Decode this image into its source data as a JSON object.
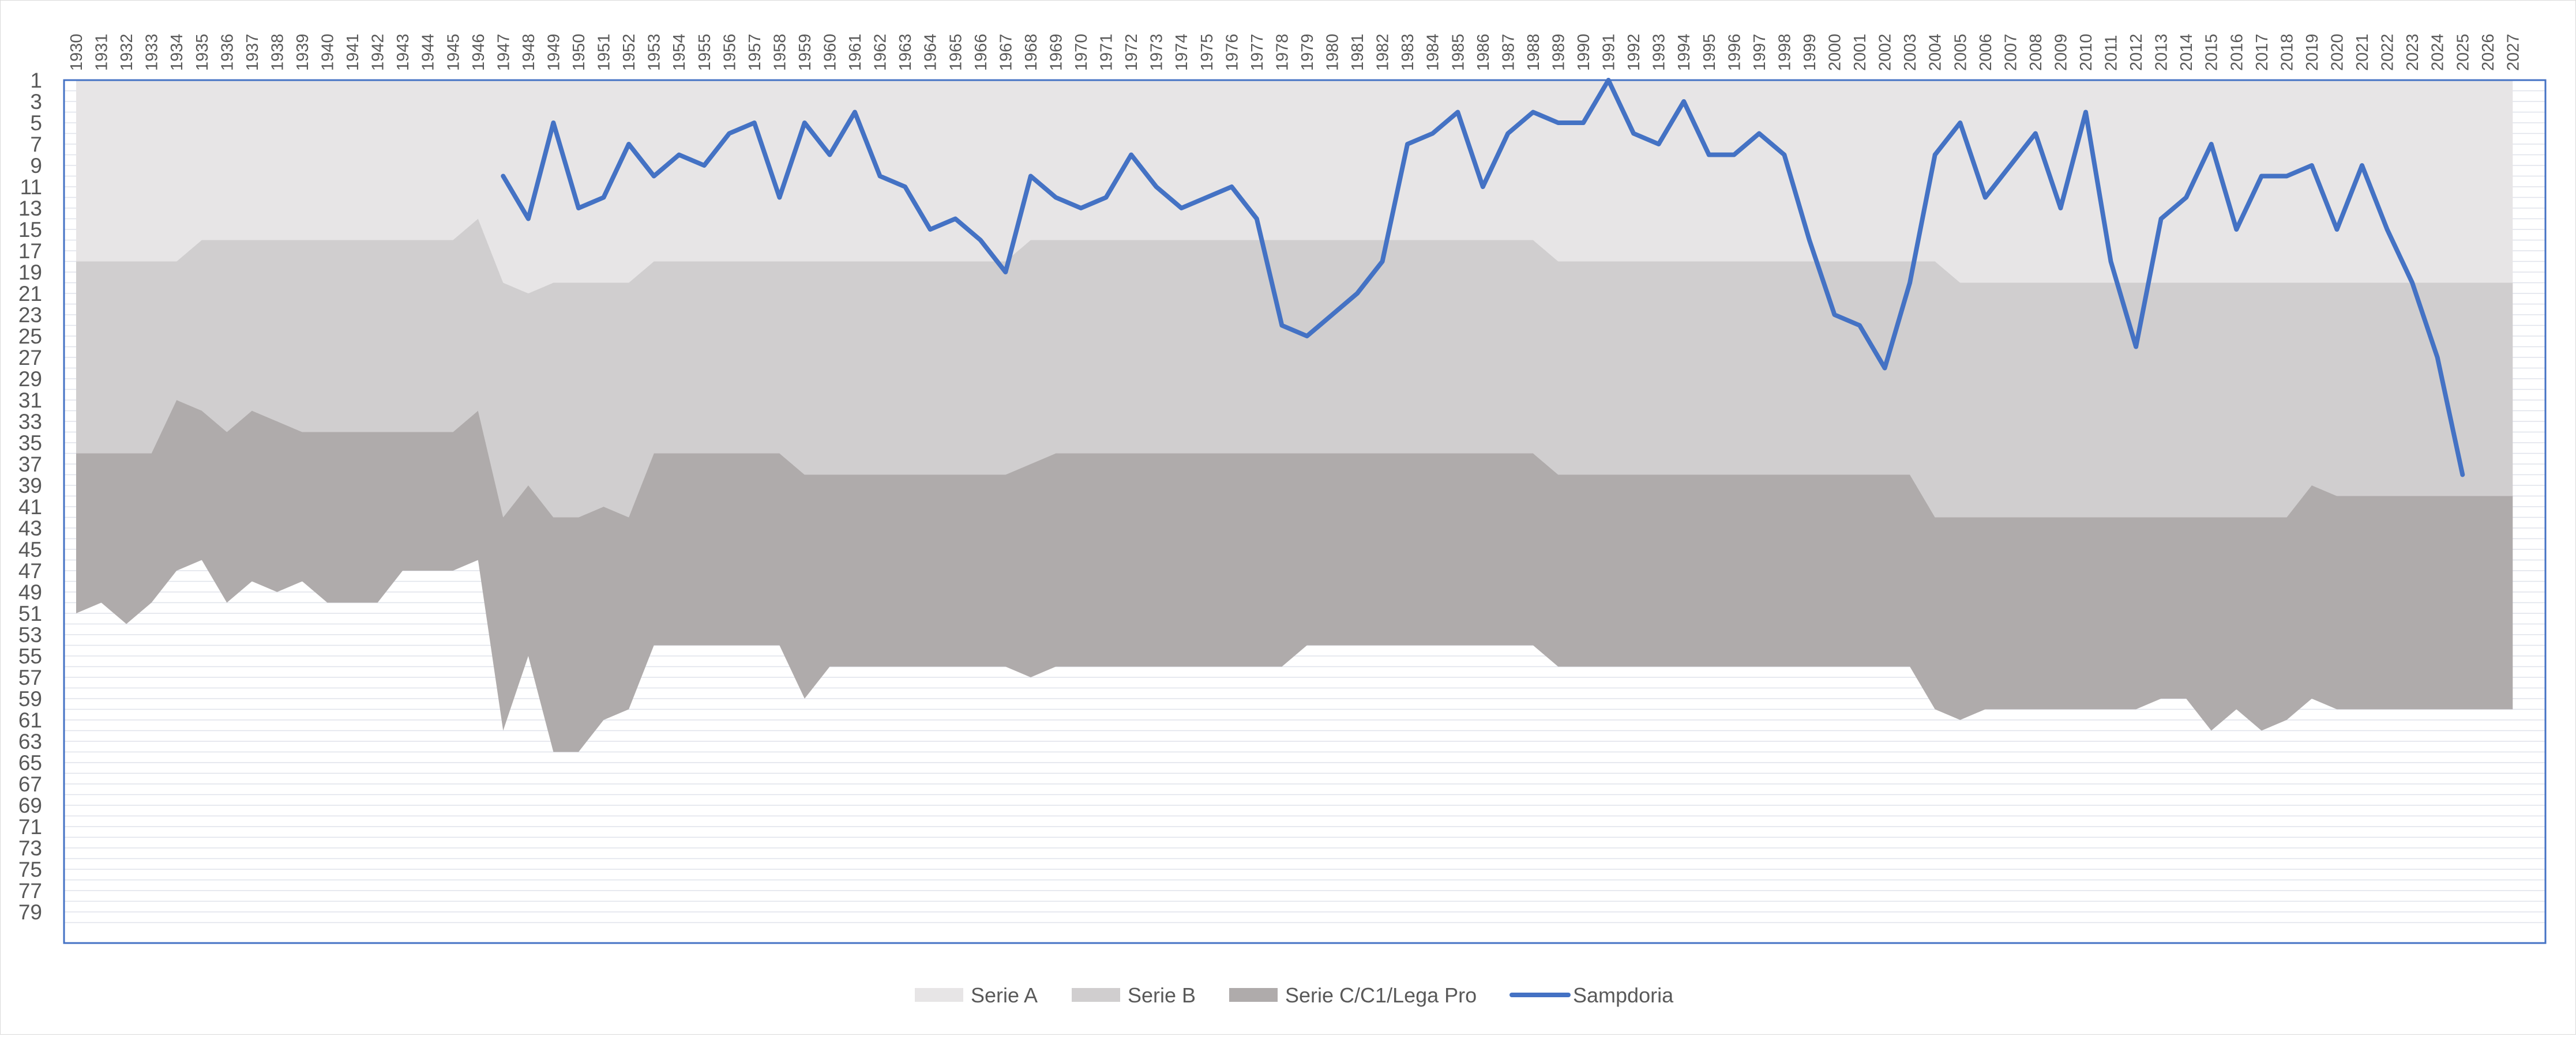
{
  "chart_data": {
    "type": "area",
    "title": "",
    "xlabel": "",
    "ylabel": "",
    "x_range": [
      1930,
      2027
    ],
    "y_range": [
      1,
      80
    ],
    "y_reversed": true,
    "grid": "horizontal",
    "legend_placement": "bottom",
    "x_ticks": [
      "1930",
      "1931",
      "1932",
      "1933",
      "1934",
      "1935",
      "1936",
      "1937",
      "1938",
      "1939",
      "1940",
      "1941",
      "1942",
      "1943",
      "1944",
      "1945",
      "1946",
      "1947",
      "1948",
      "1949",
      "1950",
      "1951",
      "1952",
      "1953",
      "1954",
      "1955",
      "1956",
      "1957",
      "1958",
      "1959",
      "1960",
      "1961",
      "1962",
      "1963",
      "1964",
      "1965",
      "1966",
      "1967",
      "1968",
      "1969",
      "1970",
      "1971",
      "1972",
      "1973",
      "1974",
      "1975",
      "1976",
      "1977",
      "1978",
      "1979",
      "1980",
      "1981",
      "1982",
      "1983",
      "1984",
      "1985",
      "1986",
      "1987",
      "1988",
      "1989",
      "1990",
      "1991",
      "1992",
      "1993",
      "1994",
      "1995",
      "1996",
      "1997",
      "1998",
      "1999",
      "2000",
      "2001",
      "2002",
      "2003",
      "2004",
      "2005",
      "2006",
      "2007",
      "2008",
      "2009",
      "2010",
      "2011",
      "2012",
      "2013",
      "2014",
      "2015",
      "2016",
      "2017",
      "2018",
      "2019",
      "2020",
      "2021",
      "2022",
      "2023",
      "2024",
      "2025",
      "2026",
      "2027"
    ],
    "y_ticks": [
      "1",
      "3",
      "5",
      "7",
      "9",
      "11",
      "13",
      "15",
      "17",
      "19",
      "21",
      "23",
      "25",
      "27",
      "29",
      "31",
      "33",
      "35",
      "37",
      "39",
      "41",
      "43",
      "45",
      "47",
      "49",
      "51",
      "53",
      "55",
      "57",
      "59",
      "61",
      "63",
      "65",
      "67",
      "69",
      "71",
      "73",
      "75",
      "77",
      "79"
    ],
    "x": [
      1930,
      1931,
      1932,
      1933,
      1934,
      1935,
      1936,
      1937,
      1938,
      1939,
      1940,
      1941,
      1942,
      1943,
      1944,
      1945,
      1946,
      1947,
      1948,
      1949,
      1950,
      1951,
      1952,
      1953,
      1954,
      1955,
      1956,
      1957,
      1958,
      1959,
      1960,
      1961,
      1962,
      1963,
      1964,
      1965,
      1966,
      1967,
      1968,
      1969,
      1970,
      1971,
      1972,
      1973,
      1974,
      1975,
      1976,
      1977,
      1978,
      1979,
      1980,
      1981,
      1982,
      1983,
      1984,
      1985,
      1986,
      1987,
      1988,
      1989,
      1990,
      1991,
      1992,
      1993,
      1994,
      1995,
      1996,
      1997,
      1998,
      1999,
      2000,
      2001,
      2002,
      2003,
      2004,
      2005,
      2006,
      2007,
      2008,
      2009,
      2010,
      2011,
      2012,
      2013,
      2014,
      2015,
      2016,
      2017,
      2018,
      2019,
      2020,
      2021,
      2022,
      2023,
      2024,
      2025,
      2026,
      2027
    ],
    "series": [
      {
        "name": "Serie A",
        "kind": "area",
        "color": "#e7e5e6",
        "bottom": [
          18,
          18,
          18,
          18,
          18,
          16,
          16,
          16,
          16,
          16,
          16,
          16,
          16,
          16,
          16,
          16,
          14,
          20,
          21,
          20,
          20,
          20,
          20,
          18,
          18,
          18,
          18,
          18,
          18,
          18,
          18,
          18,
          18,
          18,
          18,
          18,
          18,
          18,
          16,
          16,
          16,
          16,
          16,
          16,
          16,
          16,
          16,
          16,
          16,
          16,
          16,
          16,
          16,
          16,
          16,
          16,
          16,
          16,
          16,
          18,
          18,
          18,
          18,
          18,
          18,
          18,
          18,
          18,
          18,
          18,
          18,
          18,
          18,
          18,
          18,
          20,
          20,
          20,
          20,
          20,
          20,
          20,
          20,
          20,
          20,
          20,
          20,
          20,
          20,
          20,
          20,
          20,
          20,
          20,
          20,
          20,
          20,
          20
        ]
      },
      {
        "name": "Serie B",
        "kind": "area",
        "color": "#d0cecf",
        "bottom": [
          36,
          36,
          36,
          36,
          31,
          32,
          34,
          32,
          33,
          34,
          34,
          34,
          34,
          34,
          34,
          34,
          32,
          42,
          39,
          42,
          42,
          41,
          42,
          36,
          36,
          36,
          36,
          36,
          36,
          38,
          38,
          38,
          38,
          38,
          38,
          38,
          38,
          38,
          37,
          36,
          36,
          36,
          36,
          36,
          36,
          36,
          36,
          36,
          36,
          36,
          36,
          36,
          36,
          36,
          36,
          36,
          36,
          36,
          36,
          38,
          38,
          38,
          38,
          38,
          38,
          38,
          38,
          38,
          38,
          38,
          38,
          38,
          38,
          38,
          42,
          42,
          42,
          42,
          42,
          42,
          42,
          42,
          42,
          42,
          42,
          42,
          42,
          42,
          42,
          39,
          40,
          40,
          40,
          40,
          40,
          40,
          40,
          40
        ]
      },
      {
        "name": "Serie C/C1/Lega Pro",
        "kind": "area",
        "color": "#afabab",
        "bottom": [
          51,
          50,
          52,
          50,
          47,
          46,
          50,
          48,
          49,
          48,
          50,
          50,
          50,
          47,
          47,
          47,
          46,
          62,
          55,
          64,
          64,
          61,
          60,
          54,
          54,
          54,
          54,
          54,
          54,
          59,
          56,
          56,
          56,
          56,
          56,
          56,
          56,
          56,
          57,
          56,
          56,
          56,
          56,
          56,
          56,
          56,
          56,
          56,
          56,
          54,
          54,
          54,
          54,
          54,
          54,
          54,
          54,
          54,
          54,
          56,
          56,
          56,
          56,
          56,
          56,
          56,
          56,
          56,
          56,
          56,
          56,
          56,
          56,
          56,
          60,
          61,
          60,
          60,
          60,
          60,
          60,
          60,
          60,
          59,
          59,
          62,
          60,
          62,
          61,
          59,
          60,
          60,
          60,
          60,
          60,
          60,
          60,
          60
        ]
      },
      {
        "name": "Sampdoria",
        "kind": "line",
        "color": "#4472c4",
        "x": [
          1947,
          1948,
          1949,
          1950,
          1951,
          1952,
          1953,
          1954,
          1955,
          1956,
          1957,
          1958,
          1959,
          1960,
          1961,
          1962,
          1963,
          1964,
          1965,
          1966,
          1967,
          1968,
          1969,
          1970,
          1971,
          1972,
          1973,
          1974,
          1975,
          1976,
          1977,
          1978,
          1979,
          1980,
          1981,
          1982,
          1983,
          1984,
          1985,
          1986,
          1987,
          1988,
          1989,
          1990,
          1991,
          1992,
          1993,
          1994,
          1995,
          1996,
          1997,
          1998,
          1999,
          2000,
          2001,
          2002,
          2003,
          2004,
          2005,
          2006,
          2007,
          2008,
          2009,
          2010,
          2011,
          2012,
          2013,
          2014,
          2015,
          2016,
          2017,
          2018,
          2019,
          2020,
          2021,
          2022,
          2023,
          2024,
          2025
        ],
        "values": [
          10,
          14,
          5,
          13,
          12,
          7,
          10,
          8,
          9,
          6,
          5,
          12,
          5,
          8,
          4,
          10,
          11,
          15,
          14,
          16,
          19,
          10,
          12,
          13,
          12,
          8,
          11,
          13,
          12,
          11,
          14,
          24,
          25,
          23,
          21,
          18,
          7,
          6,
          4,
          11,
          6,
          4,
          5,
          5,
          1,
          6,
          7,
          3,
          8,
          8,
          6,
          8,
          16,
          23,
          24,
          28,
          20,
          8,
          5,
          12,
          9,
          6,
          13,
          4,
          18,
          26,
          14,
          12,
          7,
          15,
          10,
          10,
          9,
          15,
          9,
          15,
          20,
          27,
          38
        ]
      }
    ]
  }
}
